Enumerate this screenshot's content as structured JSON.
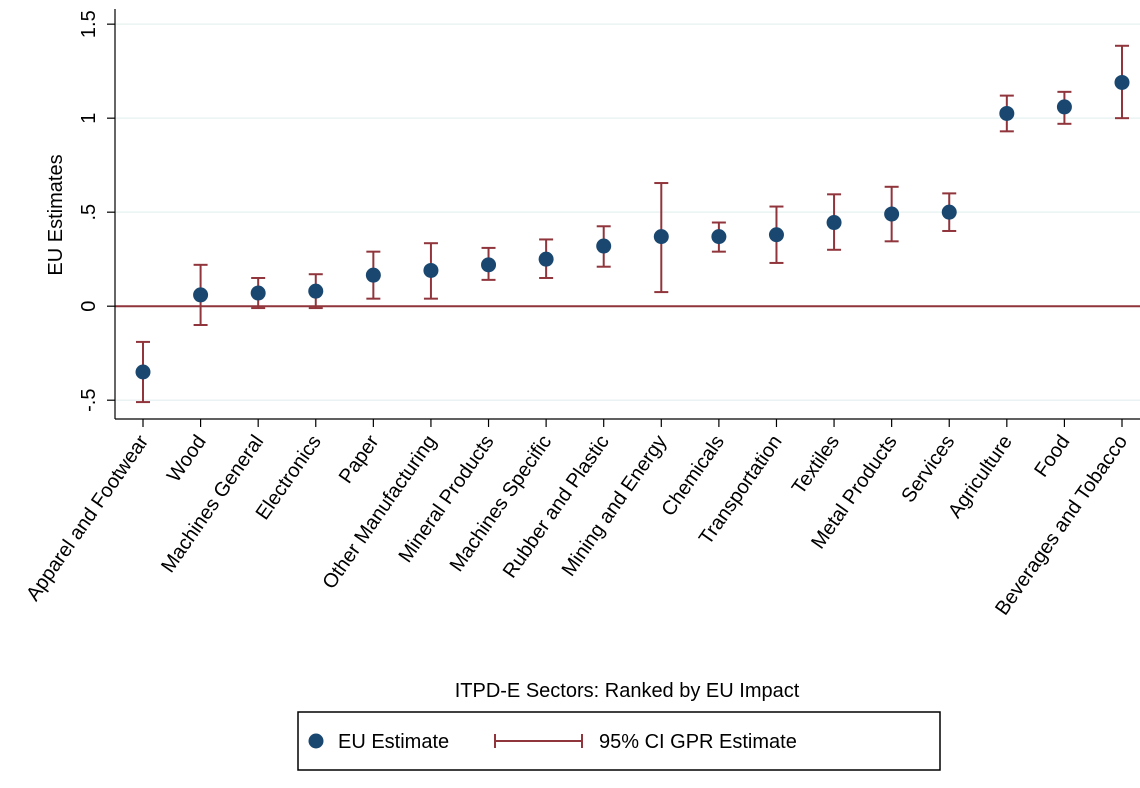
{
  "chart_data": {
    "type": "errorbar",
    "x_label": "ITPD-E Sectors: Ranked by EU Impact",
    "y_label": "EU Estimates",
    "categories": [
      "Apparel and Footwear",
      "Wood",
      "Machines General",
      "Electronics",
      "Paper",
      "Other Manufacturing",
      "Mineral Products",
      "Machines Specific",
      "Rubber and Plastic",
      "Mining and Energy",
      "Chemicals",
      "Transportation",
      "Textiles",
      "Metal Products",
      "Services",
      "Agriculture",
      "Food",
      "Beverages and Tobacco"
    ],
    "series": [
      {
        "name": "EU Estimate",
        "color": "#1a476f",
        "values": [
          -0.35,
          0.06,
          0.07,
          0.08,
          0.165,
          0.19,
          0.22,
          0.25,
          0.32,
          0.37,
          0.37,
          0.38,
          0.445,
          0.49,
          0.5,
          1.025,
          1.06,
          1.19
        ]
      },
      {
        "name": "95% CI GPR Estimate",
        "color": "#90353b",
        "low": [
          -0.51,
          -0.1,
          -0.01,
          -0.01,
          0.04,
          0.04,
          0.14,
          0.15,
          0.21,
          0.075,
          0.29,
          0.23,
          0.3,
          0.345,
          0.4,
          0.93,
          0.97,
          1.0
        ],
        "high": [
          -0.19,
          0.22,
          0.15,
          0.17,
          0.29,
          0.335,
          0.31,
          0.355,
          0.425,
          0.655,
          0.445,
          0.53,
          0.595,
          0.635,
          0.6,
          1.12,
          1.14,
          1.385
        ]
      }
    ],
    "ylim": [
      -0.6,
      1.57
    ],
    "yticks": [
      {
        "value": -0.5,
        "label": "-.5"
      },
      0,
      {
        "value": 0.5,
        "label": ".5"
      },
      1,
      1.5
    ],
    "grid": true,
    "hline": 0,
    "hline_color": "#90353b",
    "legend": "bottom"
  }
}
